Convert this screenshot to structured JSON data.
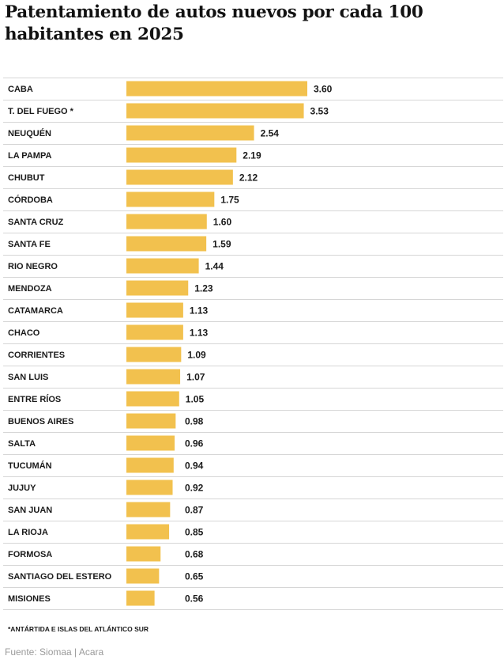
{
  "chart_data": {
    "type": "bar",
    "orientation": "horizontal",
    "title": "Patentamiento de autos nuevos por cada 100 habitantes en 2025",
    "categories": [
      "CABA",
      "T. DEL FUEGO *",
      "NEUQUÉN",
      "LA PAMPA",
      "CHUBUT",
      "CÓRDOBA",
      "SANTA CRUZ",
      "SANTA FE",
      "RIO NEGRO",
      "MENDOZA",
      "CATAMARCA",
      "CHACO",
      "CORRIENTES",
      "SAN LUIS",
      "ENTRE RÍOS",
      "BUENOS AIRES",
      "SALTA",
      "TUCUMÁN",
      "JUJUY",
      "SAN JUAN",
      "LA RIOJA",
      "FORMOSA",
      "SANTIAGO DEL ESTERO",
      "MISIONES"
    ],
    "values": [
      3.6,
      3.53,
      2.54,
      2.19,
      2.12,
      1.75,
      1.6,
      1.59,
      1.44,
      1.23,
      1.13,
      1.13,
      1.09,
      1.07,
      1.05,
      0.98,
      0.96,
      0.94,
      0.92,
      0.87,
      0.85,
      0.68,
      0.65,
      0.56
    ],
    "value_labels": [
      "3.60",
      "3.53",
      "2.54",
      "2.19",
      "2.12",
      "1.75",
      "1.60",
      "1.59",
      "1.44",
      "1.23",
      "1.13",
      "1.13",
      "1.09",
      "1.07",
      "1.05",
      "0.98",
      "0.96",
      "0.94",
      "0.92",
      "0.87",
      "0.85",
      "0.68",
      "0.65",
      "0.56"
    ],
    "xlim": [
      0,
      3.6
    ],
    "grid": false,
    "bar_color": "#f2c14e",
    "footnote": "*ANTÁRTIDA E ISLAS DEL ATLÁNTICO SUR",
    "source": "Fuente: Siomaa | Acara"
  }
}
